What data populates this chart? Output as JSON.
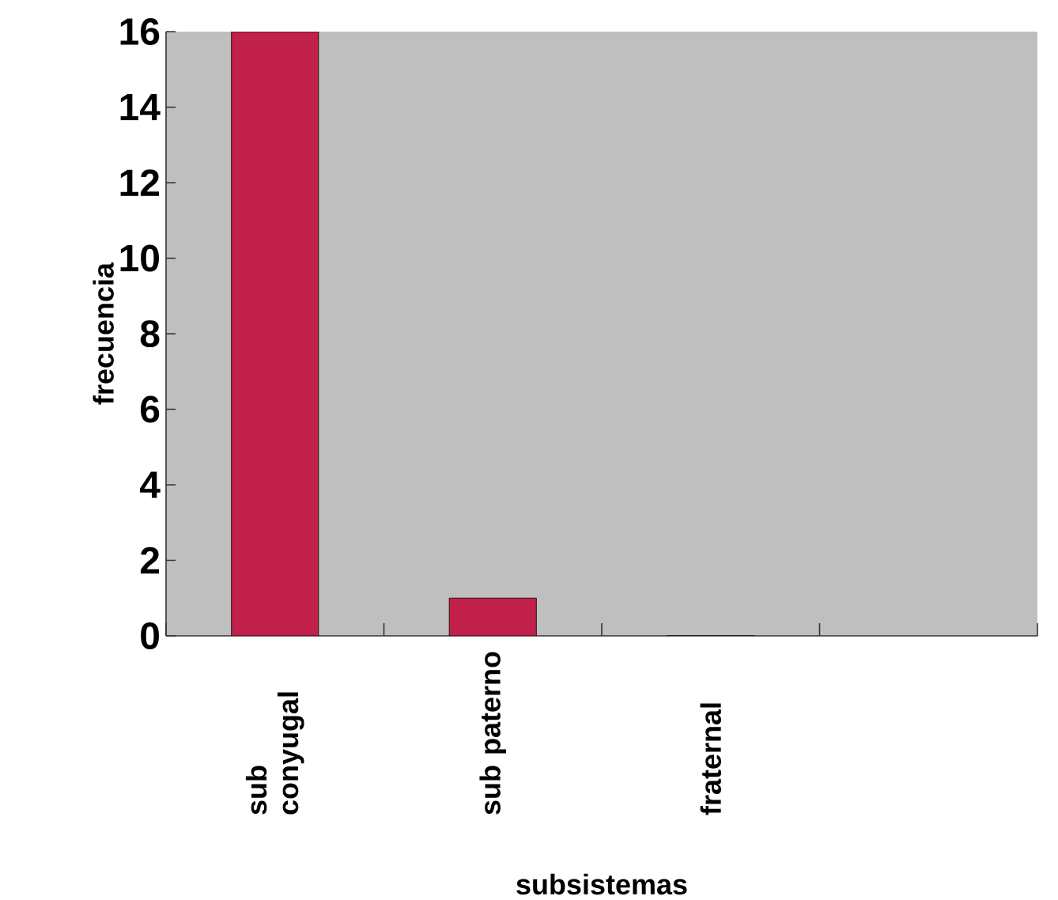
{
  "chart_data": {
    "type": "bar",
    "xlabel": "subsistemas",
    "ylabel": "frecuencia",
    "categories": [
      "sub conyugal",
      "sub paterno",
      "fraternal",
      null
    ],
    "values": [
      16,
      1,
      0,
      null
    ],
    "color": "#c0204a",
    "ylim": [
      0,
      16
    ],
    "yticks": [
      0,
      2,
      4,
      6,
      8,
      10,
      12,
      14,
      16
    ],
    "grid": false
  }
}
